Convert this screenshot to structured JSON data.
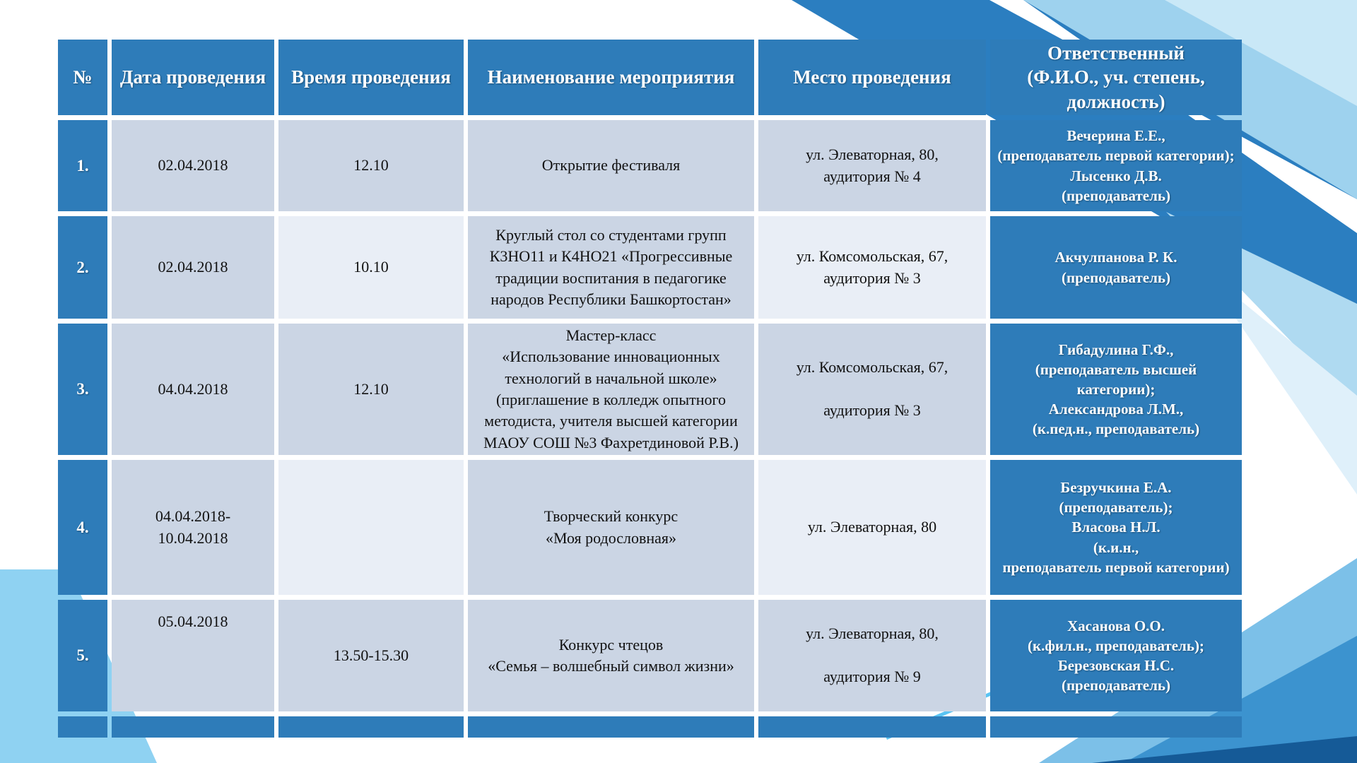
{
  "colors": {
    "header-blue": "#2E7CB9",
    "cell-muted": "#CBD5E4",
    "cell-light": "#E9EEF6",
    "text-dark": "#111111",
    "tri-mid": "#2B7EC0",
    "tri-light": "#9ED2EE",
    "tri-pale": "#C9E8F7",
    "wedge-light": "#AFDAF1",
    "wedge-pale": "#DFF0FA",
    "br-light": "#7CC0E8",
    "br-mid": "#3C93CF",
    "br-navy": "#155A97",
    "line-cyan": "#5BC4F3",
    "bl-sky": "#8FD2F2"
  },
  "table": {
    "columns": [
      {
        "label": "№"
      },
      {
        "label": "Дата проведения"
      },
      {
        "label": "Время проведения"
      },
      {
        "label": "Наименование мероприятия"
      },
      {
        "label": "Место проведения"
      },
      {
        "label": "Ответственный\n(Ф.И.О., уч. степень,\nдолжность)"
      }
    ],
    "rows": [
      {
        "num": "1.",
        "date": "02.04.2018",
        "time": "12.10",
        "name": "Открытие фестиваля",
        "place": "ул. Элеваторная, 80,\nаудитория № 4",
        "resp": "Вечерина Е.Е.,\n(преподаватель первой категории);\nЛысенко Д.В.\n(преподаватель)"
      },
      {
        "num": "2.",
        "date": "02.04.2018",
        "time": "10.10",
        "name": "Круглый стол со студентами групп\nК3НО11 и К4НО21 «Прогрессивные\nтрадиции воспитания в педагогике\nнародов Республики Башкортостан»",
        "place": "ул. Комсомольская, 67,\nаудитория № 3",
        "resp": "Акчулпанова Р. К.\n(преподаватель)"
      },
      {
        "num": "3.",
        "date": "04.04.2018",
        "time": "12.10",
        "name": "Мастер-класс\n«Использование инновационных\nтехнологий в начальной школе»\n(приглашение в колледж опытного\nметодиста, учителя высшей категории\nМАОУ СОШ №3 Фахретдиновой Р.В.)",
        "place": "ул. Комсомольская, 67,\n\nаудитория № 3",
        "resp": "Гибадулина Г.Ф.,\n(преподаватель высшей\nкатегории);\nАлександрова Л.М.,\n(к.пед.н., преподаватель)"
      },
      {
        "num": "4.",
        "date": "04.04.2018-\n10.04.2018",
        "time": "",
        "name": "Творческий конкурс\n«Моя родословная»",
        "place": "ул. Элеваторная, 80",
        "resp": "Безручкина Е.А.\n(преподаватель);\nВласова Н.Л.\n(к.и.н.,\nпреподаватель первой категории)"
      },
      {
        "num": "5.",
        "date": "05.04.2018",
        "time": "13.50-15.30",
        "name": "Конкурс чтецов\n«Семья – волшебный символ жизни»",
        "place": "ул. Элеваторная, 80,\n\nаудитория № 9",
        "resp": "Хасанова О.О.\n(к.фил.н., преподаватель);\nБерезовская Н.С.\n(преподаватель)"
      }
    ]
  }
}
